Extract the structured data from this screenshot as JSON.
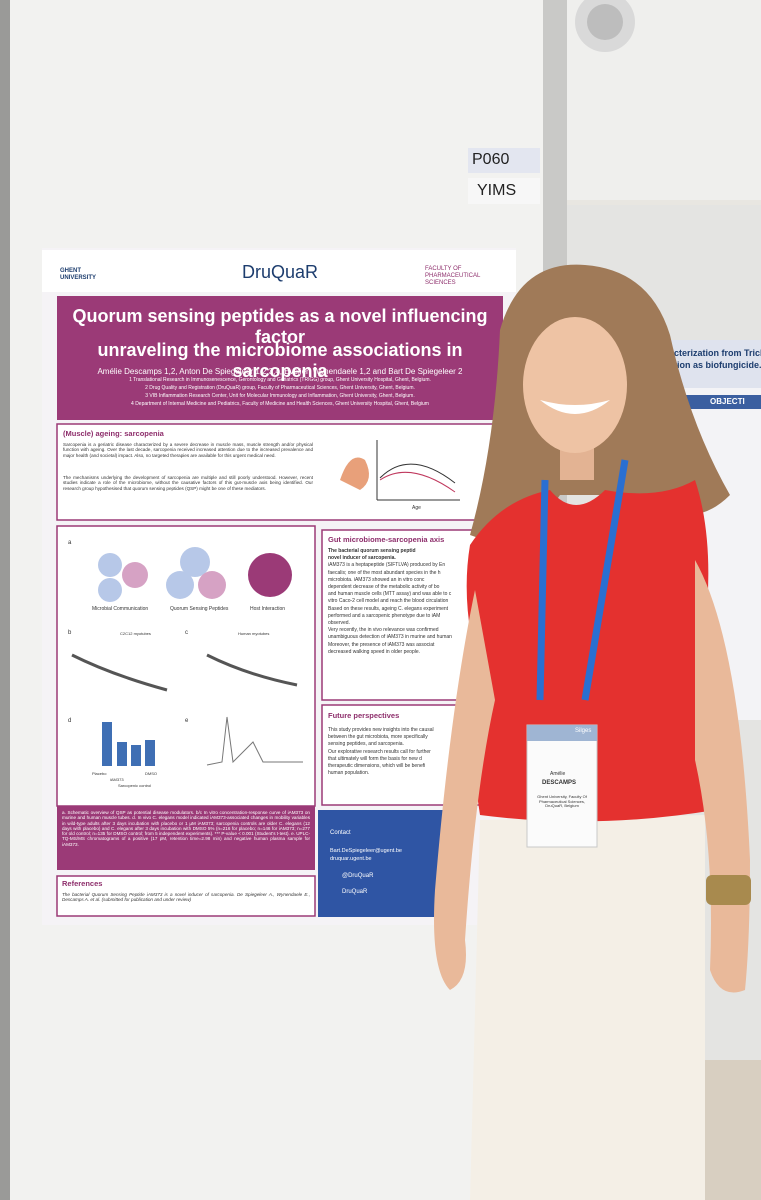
{
  "board": {
    "code": "P060",
    "session": "YIMS"
  },
  "poster": {
    "logos": {
      "ghent": "GHENT UNIVERSITY",
      "druquar": "DruQuaR",
      "faculty": "FACULTY OF PHARMACEUTICAL SCIENCES"
    },
    "title": [
      "Quorum sensing peptides as a novel influencing factor",
      "unraveling the microbiome associations in sarcopenia"
    ],
    "authors": "Amélie Descamps 1,2, Anton De Spiegeleer 1,2,3,4, Evelien Wynendaele 1,2 and Bart De Spiegeleer 2",
    "affiliations": [
      "1 Translational Research in Immunosenescence, Gerontology and Geriatrics (TRIGG) group, Ghent University Hospital, Ghent, Belgium.",
      "2 Drug Quality and Registration (DruQuaR) group, Faculty of Pharmaceutical Sciences, Ghent University, Ghent, Belgium.",
      "3 VIB Inflammation Research Center, Unit for Molecular Immunology and Inflammation, Ghent University, Ghent, Belgium.",
      "4 Department of Internal Medicine and Pediatrics, Faculty of Medicine and Health Sciences, Ghent University Hospital, Ghent, Belgium"
    ],
    "sarcopenia": {
      "heading": "(Muscle) ageing: sarcopenia",
      "paragraphs": [
        "Sarcopenia is a geriatric disease characterized by a severe decrease in muscle mass, muscle strength and/or physical function with ageing. Over the last decade, sarcopenia received increased attention due to the increased prevalence and major health (and societal) impact. Also, no targeted therapies are available for this urgent medical need.",
        "The mechanisms underlying the development of sarcopenia are multiple and still poorly understood. However, recent studies indicate a role of the microbiome, without the causative factors of this gut-muscle axis being identified. Our research group hypothesised that quorum sensing peptides (QSP) might be one of these mediators."
      ],
      "axis": "Age"
    },
    "figure": {
      "panels": [
        "a",
        "b",
        "c",
        "d",
        "e"
      ],
      "labels": [
        "Microbial Communication",
        "Quorum Sensing Peptides",
        "Host Interaction"
      ],
      "curve_titles": [
        "C2C12 myotubes",
        "Human myotubes"
      ],
      "bar_labels": [
        "Placebo",
        "iAM373",
        "Sarcopenic control",
        "DMSO"
      ],
      "caption": "a. Schematic overview of QSP as potential disease modulators. b/c In vitro concentration-response curve of iAM373 on murine and human muscle tubes. d. In vivo C. elegans model indicated iAM373-associated changes in mobility variables in wild-type adults after 3 days incubation with placebo or 1 µM iAM373; sarcopenia controls are older C. elegans (12 days with placebo) and C. elegans after 3 days incubation with DMSO 5% (n=216 for placebo; n=146 for iAM373; n=277 for old control; n=135 for DMSO control; from 5 independent experiments). *** P-value < 0.001 (Student's t-test). e. UPLC-TQ-MS/MS chromatograms of a positive (17 pM, retention time=2.98 min) and negative human plasma sample for iAM373."
    },
    "references": {
      "heading": "References",
      "text": "The bacterial Quorum Sensing Peptide iAM373 is a novel inducer of sarcopenia. De Spiegeleer A., Wynendaele E., Descamps A. et al. (submitted for publication and under review)"
    },
    "gut": {
      "heading": "Gut microbiome-sarcopenia axis",
      "lines": [
        "The bacterial quorum sensing peptid",
        "novel inducer of sarcopenia.",
        "iAM373 is a heptapeptide (SIFTLVA) produced by En",
        "faecalis; one of the most abundant species in the h",
        "microbiota. iAM373 showed an in vitro conc",
        "dependent decrease of the metabolic activity of bo",
        "and human muscle cells (MTT assay) and was able to c",
        "vitro Caco-2 cell model and reach the blood circulation",
        "Based on these results, ageing C. elegans experiment",
        "performed and a sarcopenic phenotype due to iAM",
        "observed.",
        "Very recently, the in vivo relevance was confirmed",
        "unambiguous detection of iAM373 in murine and human",
        "Moreover, the presence of iAM373 was associat",
        "decreased walking speed in older people."
      ]
    },
    "future": {
      "heading": "Future perspectives",
      "lines": [
        "This study provides new insights into the causal",
        "between the gut microbiota, more specifically",
        "sensing peptides, and sarcopenia.",
        "Our explorative research results call for further",
        "that ultimately will form the basis for new d",
        "therapeutic dimensions, which will be benefi",
        "human population."
      ]
    },
    "contact": {
      "heading": "Contact",
      "email": "Bart.DeSpiegeleer@ugent.be",
      "web": "druquar.ugent.be",
      "twitter": "@DruQuaR",
      "linkedin": "DruQuaR"
    }
  },
  "other_poster": {
    "title": [
      "l characterization from Trichod",
      "heir action as biofungicide."
    ],
    "section": "OBJECTI"
  },
  "badge": {
    "event": "Silges",
    "first": "Amélie",
    "last": "DESCAMPS",
    "org": "Ghent University, Faculty Of Pharmaceutical Sciences, DruQuaR, Belgium"
  }
}
